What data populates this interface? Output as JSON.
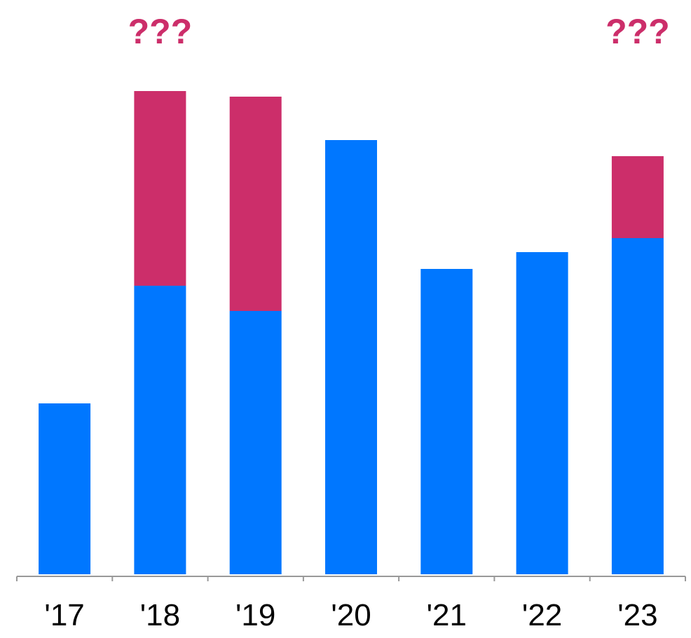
{
  "chart_data": {
    "type": "bar",
    "stacked": true,
    "categories": [
      "'17",
      "'18",
      "'19",
      "'20",
      "'21",
      "'22",
      "'23"
    ],
    "series": [
      {
        "color": "#0077ff",
        "values": [
          244,
          412,
          376,
          620,
          436,
          460,
          480
        ]
      },
      {
        "color": "#cc2e6a",
        "values": [
          0,
          278,
          306,
          0,
          0,
          0,
          117
        ]
      }
    ],
    "annotations": [
      {
        "category": "'18",
        "text": "???"
      },
      {
        "category": "'23",
        "text": "???"
      }
    ],
    "title": "",
    "xlabel": "",
    "ylabel": "",
    "ylim": [
      0,
      700
    ],
    "y_axis_visible": false,
    "grid": false,
    "legend": "none",
    "annotation_color": "#cc2e6a",
    "axis_color": "#999999",
    "tick_label_color": "#000000"
  }
}
